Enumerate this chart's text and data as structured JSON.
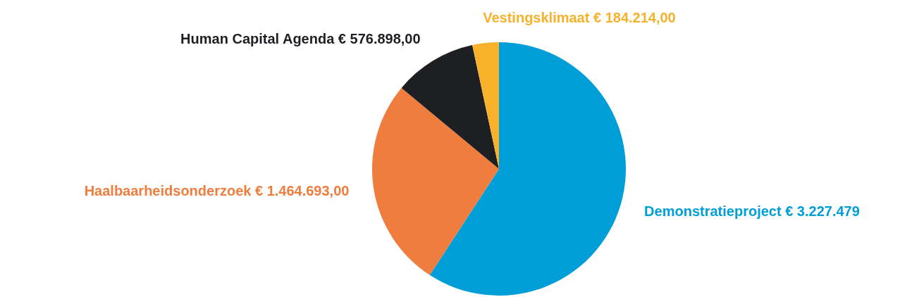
{
  "chart_data": {
    "type": "pie",
    "categories": [
      "Demonstratieproject",
      "Haalbaarheidsonderzoek",
      "Human Capital Agenda",
      "Vestingsklimaat"
    ],
    "values": [
      3227479,
      1464693,
      576898,
      184214
    ],
    "value_labels": [
      "€ 3.227.479",
      "€ 1.464.693,00",
      "€ 576.898,00",
      "€ 184.214,00"
    ],
    "colors": [
      "#009ed8",
      "#ee7d3e",
      "#1e1f22",
      "#f8b12a"
    ]
  }
}
